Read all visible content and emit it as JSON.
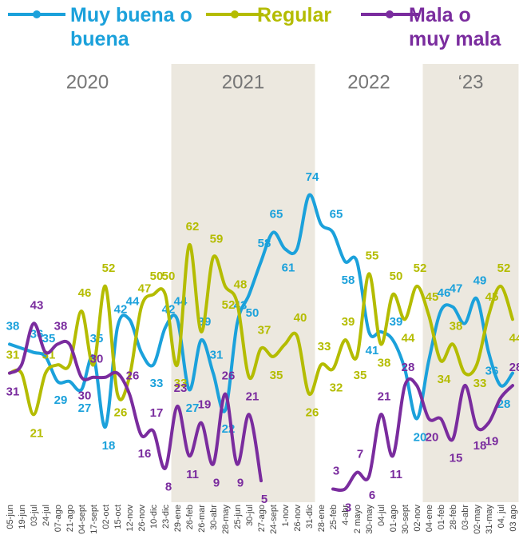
{
  "chart_data": {
    "type": "line",
    "categories": [
      "05-jun",
      "19-jun",
      "03-jul",
      "24-jul",
      "07-ago",
      "21-ago",
      "04-sept",
      "17-sept",
      "02-oct",
      "15-oct",
      "12-nov",
      "26-nov",
      "10-dic",
      "23-dic",
      "29-ene",
      "26-feb",
      "26-mar",
      "30-abr",
      "28-may",
      "25-jun",
      "30-jul",
      "27-ago",
      "24-sept",
      "1-nov",
      "26-nov",
      "31-dic",
      "28-ene",
      "25-feb",
      "4-abr",
      "2 mayo",
      "30-may",
      "04-jul",
      "01-ago",
      "30-sept",
      "02-nov",
      "04-ene",
      "01-feb",
      "28-feb",
      "03-abr",
      "02-may",
      "31-may",
      "04, jul",
      "03 ago"
    ],
    "ylim": [
      0,
      80
    ],
    "periods": [
      {
        "label": "2020",
        "start": "05-jun",
        "end": "23-dic",
        "shaded": false
      },
      {
        "label": "2021",
        "start": "29-ene",
        "end": "31-dic",
        "shaded": true
      },
      {
        "label": "2022",
        "start": "28-ene",
        "end": "02-nov",
        "shaded": false
      },
      {
        "label": "‘23",
        "start": "04-ene",
        "end": "03 ago",
        "shaded": true
      }
    ],
    "series": [
      {
        "name": "Muy buena o buena",
        "color": "#1ba1db",
        "values": [
          38,
          37,
          36,
          35,
          29,
          29,
          27,
          35,
          18,
          42,
          44,
          36,
          33,
          42,
          44,
          27,
          39,
          31,
          22,
          43,
          50,
          58,
          65,
          61,
          61,
          74,
          67,
          65,
          58,
          58,
          41,
          41,
          39,
          32,
          20,
          34,
          46,
          47,
          43,
          49,
          36,
          28,
          31
        ],
        "value_labels": [
          "38",
          null,
          "36",
          "35",
          "29",
          null,
          "27",
          "35",
          "18",
          "42",
          "44",
          null,
          "33",
          "42",
          "44",
          "27",
          "39",
          "31",
          "22",
          "43",
          "50",
          "58",
          "65",
          "61",
          null,
          "74",
          null,
          "65",
          "58",
          null,
          "41",
          null,
          "39",
          null,
          "20",
          null,
          "46",
          "47",
          null,
          "49",
          "36",
          "28",
          null
        ]
      },
      {
        "name": "Regular",
        "color": "#b4bc00",
        "values": [
          31,
          31,
          21,
          31,
          33,
          33,
          46,
          33,
          52,
          26,
          30,
          47,
          50,
          50,
          33,
          62,
          41,
          59,
          52,
          48,
          30,
          37,
          35,
          38,
          40,
          26,
          33,
          32,
          39,
          35,
          55,
          38,
          50,
          44,
          52,
          45,
          34,
          38,
          31,
          33,
          45,
          52,
          44
        ],
        "value_labels": [
          "31",
          null,
          "21",
          "31",
          null,
          null,
          "46",
          null,
          "52",
          "26",
          null,
          "47",
          "50",
          "50",
          "33",
          "62",
          null,
          "59",
          "52",
          "48",
          null,
          "37",
          "35",
          null,
          "40",
          "26",
          "33",
          "32",
          "39",
          "35",
          "55",
          "38",
          "50",
          "44",
          "52",
          "45",
          "34",
          "38",
          null,
          "33",
          "45",
          "52",
          "44"
        ]
      },
      {
        "name": "Mala o muy mala",
        "color": "#7a2c9e",
        "values": [
          31,
          33,
          43,
          36,
          38,
          38,
          30,
          30,
          30,
          31,
          26,
          16,
          17,
          8,
          23,
          11,
          19,
          9,
          26,
          9,
          21,
          5,
          null,
          null,
          null,
          null,
          null,
          3,
          3,
          7,
          6,
          21,
          11,
          28,
          28,
          20,
          20,
          15,
          28,
          18,
          19,
          25,
          28
        ],
        "value_labels": [
          "31",
          null,
          "43",
          null,
          "38",
          null,
          "30",
          "30",
          null,
          null,
          "26",
          "16",
          "17",
          "8",
          "23",
          "11",
          "19",
          "9",
          "26",
          "9",
          "21",
          "5",
          null,
          null,
          null,
          null,
          null,
          "3",
          "3",
          "7",
          "6",
          "21",
          "11",
          "28",
          null,
          "20",
          null,
          "15",
          null,
          "18",
          "19",
          null,
          "28"
        ]
      }
    ]
  }
}
